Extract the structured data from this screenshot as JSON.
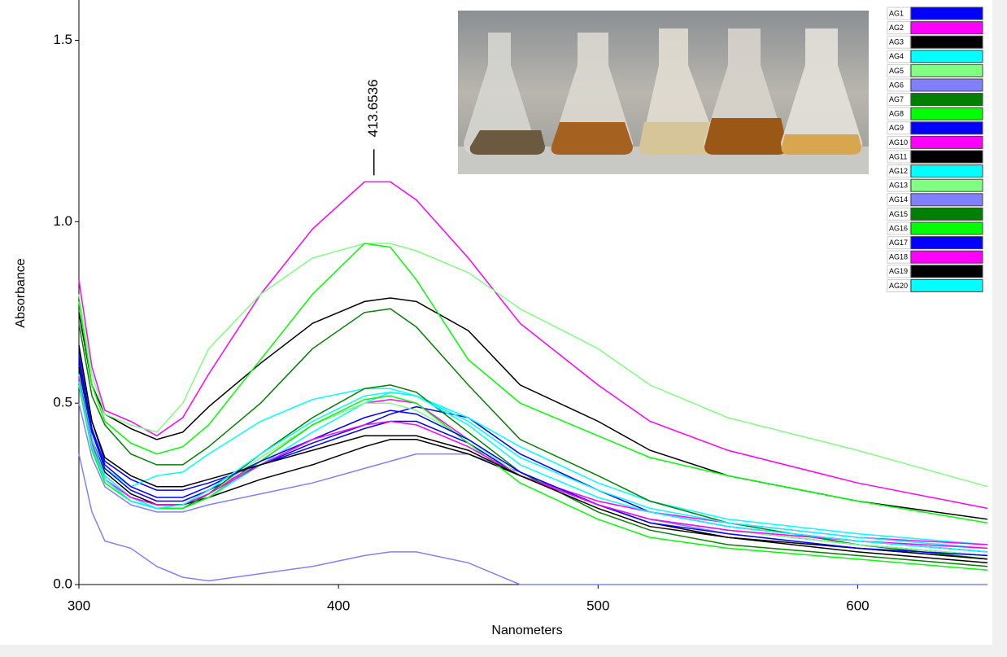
{
  "chart_data": {
    "type": "line",
    "x_label": "Nanometers",
    "y_label": "Absorbance",
    "peak_marker": 413.6536,
    "xlim": [
      300,
      650
    ],
    "ylim": [
      0,
      1.6
    ],
    "xticks": [
      300,
      400,
      500,
      600
    ],
    "yticks": [
      {
        "value": 0,
        "label": "0.0"
      },
      0.5,
      {
        "value": 1,
        "label": "1.0"
      },
      {
        "value": 1.5,
        "label": "1.5"
      }
    ],
    "x": [
      300,
      305,
      310,
      320,
      330,
      340,
      350,
      370,
      390,
      410,
      420,
      430,
      450,
      470,
      500,
      520,
      550,
      600,
      650
    ],
    "series": [
      {
        "name": "AG1",
        "color": "#0000ff",
        "values": [
          0.65,
          0.45,
          0.34,
          0.29,
          0.26,
          0.26,
          0.28,
          0.33,
          0.39,
          0.44,
          0.47,
          0.49,
          0.46,
          0.36,
          0.26,
          0.2,
          0.16,
          0.12,
          0.09
        ]
      },
      {
        "name": "AG2",
        "color": "#ff00ff",
        "values": [
          0.84,
          0.6,
          0.48,
          0.45,
          0.41,
          0.46,
          0.58,
          0.8,
          0.98,
          1.11,
          1.11,
          1.06,
          0.9,
          0.72,
          0.55,
          0.45,
          0.37,
          0.28,
          0.21
        ]
      },
      {
        "name": "AG3",
        "color": "#000000",
        "values": [
          0.75,
          0.55,
          0.47,
          0.43,
          0.4,
          0.42,
          0.49,
          0.61,
          0.72,
          0.78,
          0.79,
          0.78,
          0.7,
          0.55,
          0.45,
          0.37,
          0.3,
          0.23,
          0.18
        ]
      },
      {
        "name": "AG4",
        "color": "#00ffff",
        "values": [
          0.6,
          0.42,
          0.32,
          0.27,
          0.3,
          0.31,
          0.36,
          0.45,
          0.51,
          0.54,
          0.54,
          0.52,
          0.46,
          0.38,
          0.28,
          0.23,
          0.18,
          0.14,
          0.11
        ]
      },
      {
        "name": "AG5",
        "color": "#80ff80",
        "values": [
          0.8,
          0.58,
          0.47,
          0.44,
          0.42,
          0.5,
          0.65,
          0.8,
          0.9,
          0.94,
          0.94,
          0.92,
          0.86,
          0.76,
          0.65,
          0.55,
          0.46,
          0.37,
          0.27
        ]
      },
      {
        "name": "AG6",
        "color": "#8080ff",
        "values": [
          0.5,
          0.35,
          0.27,
          0.22,
          0.2,
          0.2,
          0.22,
          0.25,
          0.28,
          0.32,
          0.34,
          0.36,
          0.36,
          0.31,
          0.22,
          0.18,
          0.14,
          0.1,
          0.07
        ]
      },
      {
        "name": "AG7",
        "color": "#008000",
        "values": [
          0.72,
          0.52,
          0.44,
          0.36,
          0.33,
          0.33,
          0.38,
          0.5,
          0.65,
          0.75,
          0.76,
          0.71,
          0.55,
          0.4,
          0.3,
          0.23,
          0.17,
          0.11,
          0.07
        ]
      },
      {
        "name": "AG8",
        "color": "#00ff00",
        "values": [
          0.78,
          0.55,
          0.45,
          0.39,
          0.36,
          0.38,
          0.44,
          0.62,
          0.8,
          0.94,
          0.93,
          0.84,
          0.62,
          0.5,
          0.41,
          0.35,
          0.3,
          0.23,
          0.17
        ]
      },
      {
        "name": "AG9",
        "color": "#0000ff",
        "values": [
          0.62,
          0.42,
          0.32,
          0.26,
          0.23,
          0.23,
          0.26,
          0.33,
          0.38,
          0.43,
          0.45,
          0.45,
          0.39,
          0.3,
          0.22,
          0.18,
          0.15,
          0.11,
          0.08
        ]
      },
      {
        "name": "AG10",
        "color": "#ff00ff",
        "values": [
          0.58,
          0.4,
          0.3,
          0.24,
          0.22,
          0.22,
          0.25,
          0.34,
          0.44,
          0.5,
          0.51,
          0.5,
          0.4,
          0.3,
          0.23,
          0.2,
          0.17,
          0.13,
          0.11
        ]
      },
      {
        "name": "AG11",
        "color": "#000000",
        "values": [
          0.6,
          0.4,
          0.31,
          0.25,
          0.22,
          0.22,
          0.24,
          0.29,
          0.33,
          0.38,
          0.4,
          0.4,
          0.36,
          0.3,
          0.22,
          0.17,
          0.13,
          0.1,
          0.07
        ]
      },
      {
        "name": "AG12",
        "color": "#00ffff",
        "values": [
          0.58,
          0.4,
          0.3,
          0.24,
          0.21,
          0.21,
          0.24,
          0.33,
          0.42,
          0.5,
          0.53,
          0.52,
          0.45,
          0.35,
          0.26,
          0.21,
          0.17,
          0.13,
          0.1
        ]
      },
      {
        "name": "AG13",
        "color": "#80ff80",
        "values": [
          0.55,
          0.38,
          0.28,
          0.23,
          0.21,
          0.21,
          0.25,
          0.35,
          0.44,
          0.5,
          0.5,
          0.48,
          0.4,
          0.3,
          0.22,
          0.18,
          0.15,
          0.11,
          0.08
        ]
      },
      {
        "name": "AG14",
        "color": "#8080ff",
        "values": [
          0.36,
          0.2,
          0.12,
          0.1,
          0.05,
          0.02,
          0.01,
          0.03,
          0.05,
          0.08,
          0.09,
          0.09,
          0.06,
          0,
          0,
          0,
          0,
          0,
          0
        ]
      },
      {
        "name": "AG15",
        "color": "#008000",
        "values": [
          0.56,
          0.38,
          0.29,
          0.23,
          0.21,
          0.21,
          0.25,
          0.36,
          0.46,
          0.54,
          0.55,
          0.53,
          0.42,
          0.31,
          0.2,
          0.15,
          0.11,
          0.08,
          0.05
        ]
      },
      {
        "name": "AG16",
        "color": "#00ff00",
        "values": [
          0.55,
          0.37,
          0.28,
          0.23,
          0.21,
          0.21,
          0.24,
          0.34,
          0.44,
          0.51,
          0.52,
          0.5,
          0.39,
          0.28,
          0.18,
          0.13,
          0.1,
          0.07,
          0.04
        ]
      },
      {
        "name": "AG17",
        "color": "#0000ff",
        "values": [
          0.63,
          0.43,
          0.33,
          0.27,
          0.24,
          0.24,
          0.27,
          0.34,
          0.4,
          0.46,
          0.48,
          0.47,
          0.4,
          0.31,
          0.22,
          0.17,
          0.14,
          0.1,
          0.08
        ]
      },
      {
        "name": "AG18",
        "color": "#ff00ff",
        "values": [
          0.57,
          0.39,
          0.29,
          0.24,
          0.22,
          0.22,
          0.25,
          0.33,
          0.4,
          0.44,
          0.45,
          0.44,
          0.38,
          0.3,
          0.22,
          0.18,
          0.15,
          0.12,
          0.1
        ]
      },
      {
        "name": "AG19",
        "color": "#000000",
        "values": [
          0.66,
          0.45,
          0.35,
          0.3,
          0.27,
          0.27,
          0.29,
          0.33,
          0.37,
          0.41,
          0.41,
          0.41,
          0.37,
          0.3,
          0.21,
          0.16,
          0.13,
          0.09,
          0.06
        ]
      },
      {
        "name": "AG20",
        "color": "#00ffff",
        "values": [
          0.56,
          0.38,
          0.29,
          0.23,
          0.21,
          0.22,
          0.26,
          0.36,
          0.45,
          0.52,
          0.53,
          0.52,
          0.44,
          0.33,
          0.24,
          0.2,
          0.16,
          0.12,
          0.09
        ]
      }
    ]
  }
}
